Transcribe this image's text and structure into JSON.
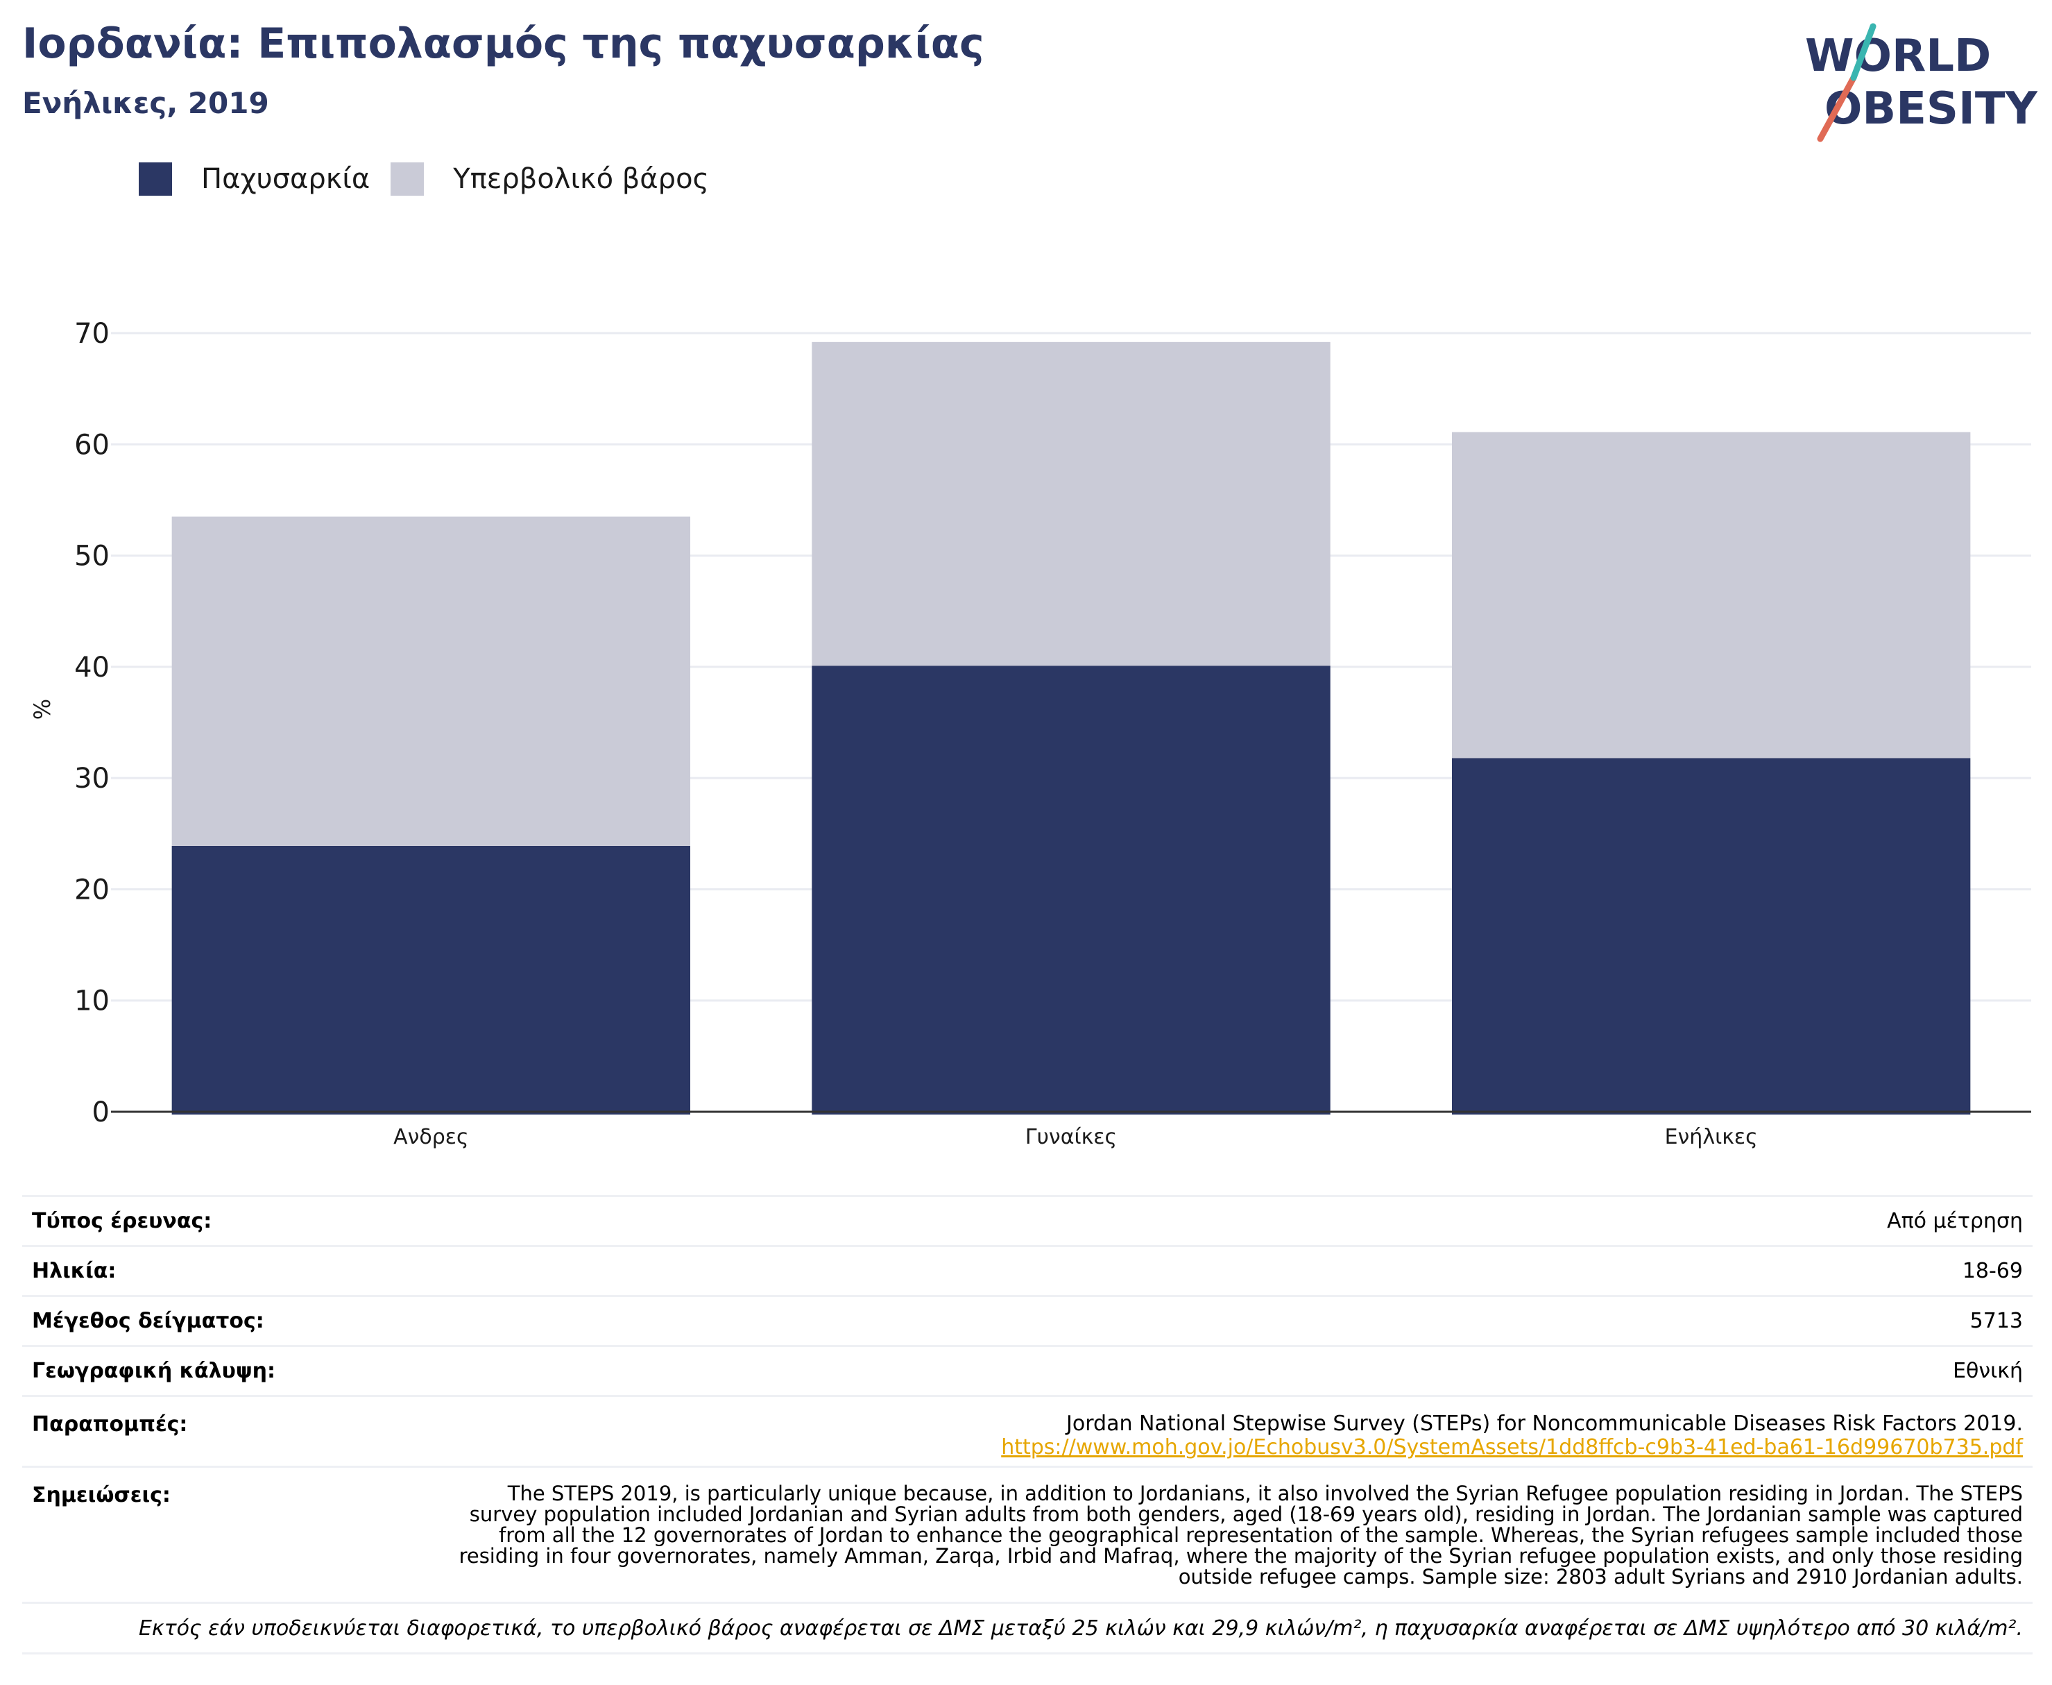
{
  "header": {
    "title": "Ιορδανία: Επιπολασμός της παχυσαρκίας",
    "subtitle": "Ενήλικες, 2019",
    "logo_text": [
      "WORLD",
      "OBESITY"
    ]
  },
  "legend": [
    {
      "label": "Παχυσαρκία",
      "color": "#2b3764"
    },
    {
      "label": "Υπερβολικό βάρος",
      "color": "#cacbd7"
    }
  ],
  "chart_data": {
    "type": "bar",
    "stacked": true,
    "categories": [
      "Ανδρες",
      "Γυναίκες",
      "Ενήλικες"
    ],
    "series": [
      {
        "name": "Παχυσαρκία",
        "values": [
          23.9,
          40.1,
          31.8
        ],
        "color": "#2b3764"
      },
      {
        "name": "Υπερβολικό βάρος",
        "values": [
          29.6,
          29.1,
          29.3
        ],
        "color": "#cacbd7"
      }
    ],
    "ylabel": "%",
    "ylim": [
      0,
      70
    ],
    "yticks": [
      0,
      10,
      20,
      30,
      40,
      50,
      60,
      70
    ],
    "grid": true
  },
  "info": {
    "survey_type": {
      "label": "Τύπος έρευνας:",
      "value": "Από μέτρηση"
    },
    "age": {
      "label": "Ηλικία:",
      "value": "18-69"
    },
    "sample_size": {
      "label": "Μέγεθος δείγματος:",
      "value": "5713"
    },
    "coverage": {
      "label": "Γεωγραφική κάλυψη:",
      "value": "Εθνική"
    },
    "references": {
      "label": "Παραπομπές:",
      "text": "Jordan National Stepwise Survey (STEPs) for Noncommunicable Diseases Risk Factors 2019.",
      "link": "https://www.moh.gov.jo/Echobusv3.0/SystemAssets/1dd8ffcb-c9b3-41ed-ba61-16d99670b735.pdf"
    },
    "notes": {
      "label": "Σημειώσεις:",
      "value": "The STEPS 2019, is particularly unique because, in addition to Jordanians, it also involved the Syrian Refugee population residing in Jordan. The STEPS survey population included Jordanian and Syrian adults from both genders, aged (18-69 years old), residing in Jordan. The Jordanian sample was captured from all the 12 governorates of Jordan to enhance the geographical representation of the sample. Whereas, the Syrian refugees sample included those residing in four governorates, namely Amman, Zarqa, Irbid and Mafraq, where the majority of the Syrian refugee population exists, and only those residing outside refugee camps. Sample size: 2803 adult Syrians and 2910 Jordanian adults."
    },
    "footnote": "Εκτός εάν υποδεικνύεται διαφορετικά, το υπερβολικό βάρος αναφέρεται σε ΔΜΣ μεταξύ 25 κιλών και 29,9 κιλών/m², η παχυσαρκία αναφέρεται σε ΔΜΣ υψηλότερο από 30 κιλά/m²."
  }
}
